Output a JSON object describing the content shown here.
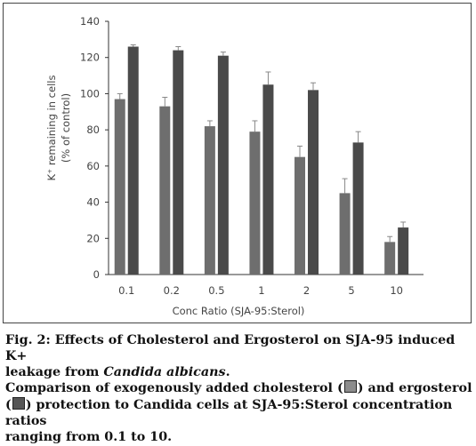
{
  "chart_data": {
    "type": "bar",
    "categories": [
      "0.1",
      "0.2",
      "0.5",
      "1",
      "2",
      "5",
      "10"
    ],
    "series": [
      {
        "values": [
          97,
          93,
          82,
          79,
          65,
          45,
          18
        ],
        "errors": [
          3,
          5,
          3,
          6,
          6,
          8,
          3
        ],
        "color": "#6e6e6e"
      },
      {
        "values": [
          126,
          124,
          121,
          105,
          102,
          73,
          26
        ],
        "errors": [
          1,
          2,
          2,
          7,
          4,
          6,
          3
        ],
        "color": "#4a4a4a"
      }
    ],
    "yticks": [
      "0",
      "20",
      "40",
      "60",
      "80",
      "100",
      "120",
      "140"
    ],
    "ylim": [
      0,
      140
    ],
    "ylabel_line1": "K⁺ remaining in cells",
    "ylabel_line2": "(% of control)",
    "xlabel": "Conc Ratio (SJA-95:Sterol)",
    "grid": false
  },
  "caption": {
    "fig_line_prefix": "Fig. 2: Effects of Cholesterol and Ergosterol on SJA-95 induced K+",
    "fig_line_suffix_plain": "leakage from ",
    "fig_line_suffix_italic": "Candida albicans",
    "fig_line_end": ".",
    "desc_part1": "Comparison of exogenously added cholesterol (",
    "desc_part2": ") and ergosterol",
    "desc_part3": "(",
    "desc_part4": ") protection to Candida cells at SJA-95:Sterol concentration ratios",
    "desc_part5": "ranging from 0.1 to 10.",
    "cholesterol_swatch_color": "#8c8c8c",
    "ergosterol_swatch_color": "#555555"
  }
}
